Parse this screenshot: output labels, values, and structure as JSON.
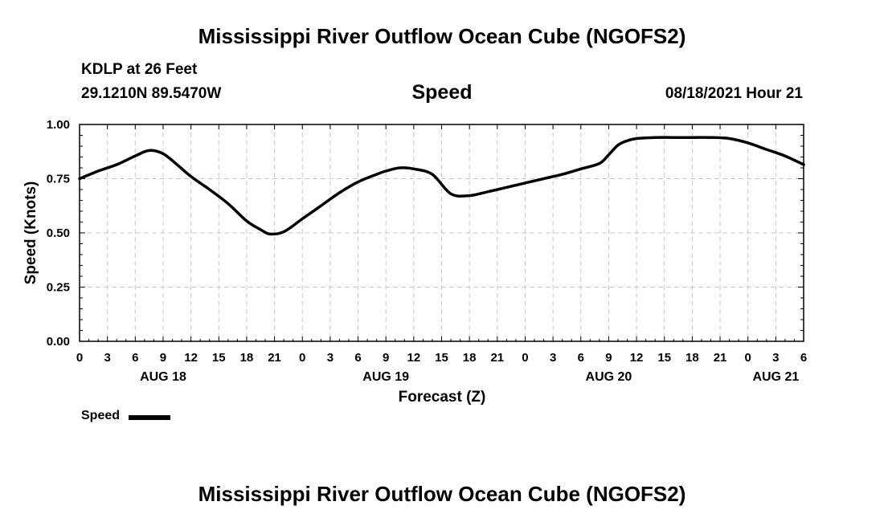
{
  "header": {
    "title": "Mississippi River Outflow Ocean Cube (NGOFS2)",
    "station": "KDLP at 26 Feet",
    "coordinates": "29.1210N  89.5470W",
    "chart_title": "Speed",
    "run_time": "08/18/2021 Hour 21"
  },
  "footer": {
    "title": "Mississippi River Outflow Ocean Cube (NGOFS2)"
  },
  "legend": {
    "label": "Speed"
  },
  "chart_data": {
    "type": "line",
    "title": "Speed",
    "xlabel": "Forecast (Z)",
    "ylabel": "Speed (Knots)",
    "x_unit": "hours since AUG 18 00Z",
    "xlim": [
      0,
      78
    ],
    "ylim": [
      0,
      1
    ],
    "grid": true,
    "y_ticks": [
      "0.00",
      "0.25",
      "0.50",
      "0.75",
      "1.00"
    ],
    "x_tick_labels": [
      "0",
      "3",
      "6",
      "9",
      "12",
      "15",
      "18",
      "21",
      "0",
      "3",
      "6",
      "9",
      "12",
      "15",
      "18",
      "21",
      "0",
      "3",
      "6",
      "9",
      "12",
      "15",
      "18",
      "21",
      "0",
      "3",
      "6"
    ],
    "date_labels": [
      {
        "hour": 9,
        "label": "AUG 18"
      },
      {
        "hour": 33,
        "label": "AUG 19"
      },
      {
        "hour": 57,
        "label": "AUG 20"
      },
      {
        "hour": 75,
        "label": "AUG 21"
      }
    ],
    "series": [
      {
        "name": "Speed",
        "color": "#000000",
        "x": [
          0,
          2,
          4,
          6,
          7.5,
          9,
          10.5,
          12,
          14,
          16,
          18,
          19.5,
          20.5,
          22,
          24,
          26,
          28,
          30,
          32,
          33,
          34.5,
          36,
          38,
          40,
          42,
          44,
          46,
          48,
          50,
          52,
          54,
          56,
          57,
          58,
          59,
          60,
          62,
          64,
          66,
          68,
          70,
          72,
          74,
          76,
          78
        ],
        "values": [
          0.75,
          0.785,
          0.815,
          0.855,
          0.88,
          0.865,
          0.815,
          0.76,
          0.7,
          0.635,
          0.555,
          0.515,
          0.495,
          0.505,
          0.565,
          0.625,
          0.685,
          0.735,
          0.77,
          0.785,
          0.8,
          0.795,
          0.77,
          0.68,
          0.672,
          0.69,
          0.71,
          0.73,
          0.75,
          0.77,
          0.795,
          0.82,
          0.86,
          0.905,
          0.925,
          0.935,
          0.94,
          0.94,
          0.94,
          0.94,
          0.935,
          0.915,
          0.885,
          0.855,
          0.815
        ]
      }
    ]
  }
}
